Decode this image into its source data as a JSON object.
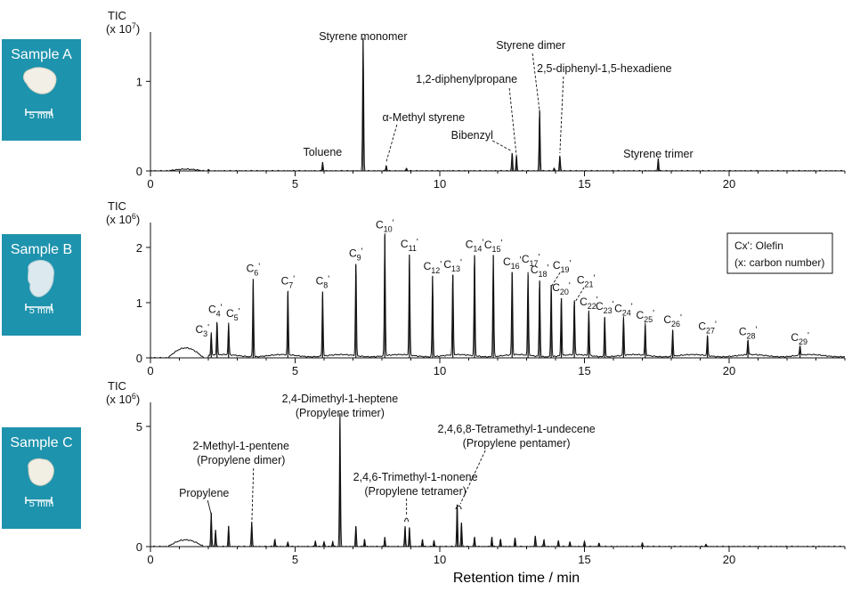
{
  "samples": [
    {
      "label": "Sample A",
      "scale_label": "5 mm"
    },
    {
      "label": "Sample B",
      "scale_label": "5 mm"
    },
    {
      "label": "Sample C",
      "scale_label": "5 mm"
    }
  ],
  "xlabel": "Retention time / min",
  "chart_data": [
    {
      "type": "line",
      "panel": "Sample A",
      "ylabel": [
        "TIC",
        "(x 10^7)"
      ],
      "xlim": [
        0,
        24
      ],
      "ylim": [
        0,
        1.55
      ],
      "xticks": [
        0,
        5,
        10,
        15,
        20
      ],
      "yticks": [
        0,
        1
      ],
      "grid": false,
      "peaks": [
        {
          "x": 2.0,
          "y": 0.015
        },
        {
          "x": 5.95,
          "y": 0.1
        },
        {
          "x": 7.35,
          "y": 1.48
        },
        {
          "x": 8.15,
          "y": 0.06
        },
        {
          "x": 8.85,
          "y": 0.03
        },
        {
          "x": 12.5,
          "y": 0.2
        },
        {
          "x": 12.65,
          "y": 0.17
        },
        {
          "x": 13.45,
          "y": 0.68
        },
        {
          "x": 13.95,
          "y": 0.03
        },
        {
          "x": 14.15,
          "y": 0.17
        },
        {
          "x": 17.55,
          "y": 0.14
        }
      ],
      "annotations": [
        {
          "text": "Toluene",
          "x": 5.95
        },
        {
          "text": "Styrene monomer",
          "x": 7.35
        },
        {
          "text": "α-Methyl styrene",
          "x": 8.15
        },
        {
          "text": "1,2-diphenylpropane",
          "x": 12.65
        },
        {
          "text": "Bibenzyl",
          "x": 12.5
        },
        {
          "text": "Styrene dimer",
          "x": 13.45
        },
        {
          "text": "2,5-diphenyl-1,5-hexadiene",
          "x": 14.15
        },
        {
          "text": "Styrene trimer",
          "x": 17.55
        }
      ]
    },
    {
      "type": "line",
      "panel": "Sample B",
      "ylabel": [
        "TIC",
        "(x 10^6)"
      ],
      "xlim": [
        0,
        24
      ],
      "ylim": [
        0,
        2.45
      ],
      "xticks": [
        0,
        5,
        10,
        15,
        20
      ],
      "yticks": [
        0,
        1,
        2
      ],
      "grid": false,
      "legend_box": [
        "Cx': Olefin",
        "(x: carbon number)"
      ],
      "peaks": [
        {
          "label": "C3'",
          "x": 2.1,
          "y": 0.42
        },
        {
          "label": "C4'",
          "x": 2.3,
          "y": 0.62
        },
        {
          "label": "C5'",
          "x": 2.7,
          "y": 0.58
        },
        {
          "label": "C6'",
          "x": 3.55,
          "y": 1.43
        },
        {
          "label": "C7'",
          "x": 4.75,
          "y": 1.2
        },
        {
          "label": "C8'",
          "x": 5.95,
          "y": 1.2
        },
        {
          "label": "C9'",
          "x": 7.1,
          "y": 1.7
        },
        {
          "label": "C10'",
          "x": 8.1,
          "y": 2.22
        },
        {
          "label": "C11'",
          "x": 8.95,
          "y": 1.87
        },
        {
          "label": "C12'",
          "x": 9.75,
          "y": 1.47
        },
        {
          "label": "C13'",
          "x": 10.45,
          "y": 1.5
        },
        {
          "label": "C14'",
          "x": 11.2,
          "y": 1.86
        },
        {
          "label": "C15'",
          "x": 11.85,
          "y": 1.85
        },
        {
          "label": "C16'",
          "x": 12.5,
          "y": 1.55
        },
        {
          "label": "C17'",
          "x": 13.05,
          "y": 1.5
        },
        {
          "label": "C18'",
          "x": 13.45,
          "y": 1.4
        },
        {
          "label": "C19'",
          "x": 13.85,
          "y": 1.32
        },
        {
          "label": "C20'",
          "x": 14.2,
          "y": 1.08
        },
        {
          "label": "C21'",
          "x": 14.65,
          "y": 1.02
        },
        {
          "label": "C22'",
          "x": 15.15,
          "y": 0.82
        },
        {
          "label": "C23'",
          "x": 15.7,
          "y": 0.74
        },
        {
          "label": "C24'",
          "x": 16.35,
          "y": 0.7
        },
        {
          "label": "C25'",
          "x": 17.1,
          "y": 0.58
        },
        {
          "label": "C26'",
          "x": 18.05,
          "y": 0.5
        },
        {
          "label": "C27'",
          "x": 19.25,
          "y": 0.38
        },
        {
          "label": "C28'",
          "x": 20.65,
          "y": 0.28
        },
        {
          "label": "C29'",
          "x": 22.45,
          "y": 0.18
        }
      ]
    },
    {
      "type": "line",
      "panel": "Sample C",
      "ylabel": [
        "TIC",
        "(x 10^6)"
      ],
      "xlim": [
        0,
        24
      ],
      "ylim": [
        0,
        6.0
      ],
      "xticks": [
        0,
        5,
        10,
        15,
        20
      ],
      "yticks": [
        0,
        5
      ],
      "grid": false,
      "peaks": [
        {
          "x": 2.1,
          "y": 1.4
        },
        {
          "x": 2.25,
          "y": 0.7
        },
        {
          "x": 2.7,
          "y": 0.85
        },
        {
          "x": 3.5,
          "y": 1.02
        },
        {
          "x": 4.3,
          "y": 0.3
        },
        {
          "x": 4.75,
          "y": 0.2
        },
        {
          "x": 5.7,
          "y": 0.25
        },
        {
          "x": 6.0,
          "y": 0.2
        },
        {
          "x": 6.3,
          "y": 0.22
        },
        {
          "x": 6.55,
          "y": 5.55
        },
        {
          "x": 7.1,
          "y": 0.85
        },
        {
          "x": 7.4,
          "y": 0.3
        },
        {
          "x": 8.1,
          "y": 0.4
        },
        {
          "x": 8.8,
          "y": 0.85
        },
        {
          "x": 8.95,
          "y": 0.8
        },
        {
          "x": 9.4,
          "y": 0.3
        },
        {
          "x": 9.8,
          "y": 0.25
        },
        {
          "x": 10.6,
          "y": 1.75
        },
        {
          "x": 10.75,
          "y": 1.0
        },
        {
          "x": 11.2,
          "y": 0.4
        },
        {
          "x": 11.8,
          "y": 0.4
        },
        {
          "x": 12.1,
          "y": 0.3
        },
        {
          "x": 12.6,
          "y": 0.35
        },
        {
          "x": 13.3,
          "y": 0.45
        },
        {
          "x": 13.6,
          "y": 0.3
        },
        {
          "x": 14.1,
          "y": 0.25
        },
        {
          "x": 14.5,
          "y": 0.2
        },
        {
          "x": 15.0,
          "y": 0.2
        },
        {
          "x": 15.5,
          "y": 0.15
        },
        {
          "x": 17.0,
          "y": 0.15
        },
        {
          "x": 19.2,
          "y": 0.1
        }
      ],
      "annotations": [
        {
          "text": "Propylene",
          "x": 2.1
        },
        {
          "text": "2-Methyl-1-pentene",
          "text2": "(Propylene dimer)",
          "x": 3.5
        },
        {
          "text": "2,4-Dimethyl-1-heptene",
          "text2": "(Propylene trimer)",
          "x": 6.55
        },
        {
          "text": "2,4,6-Trimethyl-1-nonene",
          "text2": "(Propylene tetramer)",
          "x": 8.85
        },
        {
          "text": "2,4,6,8-Tetramethyl-1-undecene",
          "text2": "(Propylene pentamer)",
          "x": 10.65
        }
      ]
    }
  ]
}
